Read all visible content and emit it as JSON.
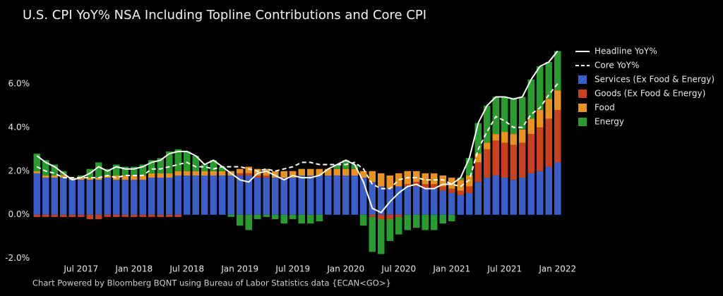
{
  "chart_data": {
    "type": "bar",
    "stacked": true,
    "title": "U.S. CPI YoY% NSA Including Topline Contributions and Core CPI",
    "source": "Chart Powered by Bloomberg BQNT using Bureau of Labor Statistics data   {ECAN<GO>}",
    "categories": [
      null,
      null,
      null,
      null,
      null,
      "Jul 2017",
      null,
      null,
      null,
      null,
      null,
      "Jan 2018",
      null,
      null,
      null,
      null,
      null,
      "Jul 2018",
      null,
      null,
      null,
      null,
      null,
      "Jan 2019",
      null,
      null,
      null,
      null,
      null,
      "Jul 2019",
      null,
      null,
      null,
      null,
      null,
      "Jan 2020",
      null,
      null,
      null,
      null,
      null,
      "Jul 2020",
      null,
      null,
      null,
      null,
      null,
      "Jan 2021",
      null,
      null,
      null,
      null,
      null,
      "Jul 2021",
      null,
      null,
      null,
      null,
      null,
      "Jan 2022"
    ],
    "series": [
      {
        "name": "Services (Ex Food & Energy)",
        "color": "#3b5fc9",
        "values": [
          1.9,
          1.7,
          1.7,
          1.7,
          1.6,
          1.6,
          1.6,
          1.6,
          1.7,
          1.6,
          1.6,
          1.6,
          1.6,
          1.7,
          1.7,
          1.7,
          1.8,
          1.8,
          1.8,
          1.8,
          1.8,
          1.8,
          1.8,
          1.8,
          1.8,
          1.7,
          1.7,
          1.7,
          1.7,
          1.7,
          1.8,
          1.8,
          1.8,
          1.8,
          1.8,
          1.8,
          1.8,
          1.7,
          1.5,
          1.3,
          1.2,
          1.3,
          1.3,
          1.3,
          1.2,
          1.2,
          1.1,
          1.0,
          0.9,
          1.0,
          1.5,
          1.7,
          1.8,
          1.7,
          1.6,
          1.7,
          1.9,
          2.0,
          2.2,
          2.4
        ]
      },
      {
        "name": "Goods (Ex Food & Energy)",
        "color": "#c9411f",
        "values": [
          -0.1,
          -0.1,
          -0.1,
          -0.1,
          -0.1,
          -0.1,
          -0.2,
          -0.2,
          -0.1,
          -0.1,
          -0.1,
          -0.1,
          -0.1,
          -0.1,
          -0.1,
          -0.1,
          -0.1,
          0.0,
          0.0,
          0.0,
          0.0,
          0.0,
          0.0,
          0.1,
          0.1,
          0.1,
          0.1,
          0.0,
          0.0,
          0.0,
          0.0,
          0.0,
          0.0,
          0.0,
          0.0,
          0.0,
          0.0,
          0.0,
          -0.1,
          -0.2,
          -0.2,
          -0.1,
          0.1,
          0.2,
          0.2,
          0.2,
          0.2,
          0.2,
          0.2,
          0.3,
          0.9,
          1.3,
          1.6,
          1.6,
          1.6,
          1.6,
          1.8,
          2.0,
          2.2,
          2.4
        ]
      },
      {
        "name": "Food",
        "color": "#e8921f",
        "values": [
          0.1,
          0.1,
          0.1,
          0.1,
          0.1,
          0.1,
          0.1,
          0.1,
          0.1,
          0.2,
          0.2,
          0.2,
          0.2,
          0.2,
          0.2,
          0.2,
          0.2,
          0.2,
          0.2,
          0.2,
          0.2,
          0.2,
          0.2,
          0.2,
          0.3,
          0.3,
          0.3,
          0.3,
          0.3,
          0.3,
          0.3,
          0.3,
          0.3,
          0.3,
          0.3,
          0.3,
          0.3,
          0.3,
          0.5,
          0.6,
          0.6,
          0.6,
          0.6,
          0.5,
          0.5,
          0.5,
          0.5,
          0.5,
          0.5,
          0.5,
          0.4,
          0.3,
          0.3,
          0.5,
          0.5,
          0.6,
          0.7,
          0.8,
          0.9,
          0.9
        ]
      },
      {
        "name": "Energy",
        "color": "#2a9b2e",
        "values": [
          0.8,
          0.7,
          0.5,
          0.2,
          0.0,
          0.1,
          0.4,
          0.7,
          0.3,
          0.5,
          0.4,
          0.4,
          0.5,
          0.6,
          0.7,
          1.0,
          1.0,
          0.9,
          0.7,
          0.3,
          0.5,
          0.2,
          -0.1,
          -0.5,
          -0.7,
          -0.2,
          -0.1,
          -0.2,
          -0.4,
          -0.2,
          -0.4,
          -0.4,
          -0.3,
          0.0,
          0.2,
          0.4,
          0.2,
          -0.5,
          -1.6,
          -1.6,
          -1.0,
          -0.8,
          -0.7,
          -0.6,
          -0.7,
          -0.7,
          -0.4,
          -0.3,
          0.1,
          0.8,
          1.4,
          1.7,
          1.7,
          1.6,
          1.6,
          1.5,
          1.8,
          2.0,
          1.7,
          1.8
        ]
      }
    ],
    "lines": [
      {
        "name": "Headline YoY%",
        "color": "#ffffff",
        "style": "solid",
        "values": [
          2.7,
          2.4,
          2.2,
          1.9,
          1.6,
          1.7,
          1.9,
          2.2,
          2.0,
          2.2,
          2.1,
          2.1,
          2.2,
          2.4,
          2.5,
          2.8,
          2.9,
          2.9,
          2.7,
          2.3,
          2.5,
          2.2,
          1.9,
          1.6,
          1.5,
          1.9,
          2.0,
          1.8,
          1.6,
          1.8,
          1.7,
          1.7,
          1.8,
          2.1,
          2.3,
          2.5,
          2.3,
          1.5,
          0.3,
          0.1,
          0.6,
          1.0,
          1.3,
          1.4,
          1.2,
          1.2,
          1.4,
          1.4,
          1.7,
          2.6,
          4.2,
          5.0,
          5.4,
          5.4,
          5.3,
          5.4,
          6.2,
          6.8,
          7.0,
          7.5
        ]
      },
      {
        "name": "Core YoY%",
        "color": "#ffffff",
        "style": "dashed",
        "values": [
          2.2,
          2.0,
          1.9,
          1.7,
          1.7,
          1.7,
          1.7,
          1.7,
          1.8,
          1.7,
          1.8,
          1.8,
          1.8,
          2.1,
          2.1,
          2.2,
          2.3,
          2.4,
          2.2,
          2.2,
          2.1,
          2.2,
          2.2,
          2.2,
          2.1,
          2.0,
          2.1,
          2.0,
          2.1,
          2.2,
          2.4,
          2.4,
          2.3,
          2.3,
          2.3,
          2.3,
          2.4,
          2.1,
          1.4,
          1.2,
          1.2,
          1.6,
          1.7,
          1.7,
          1.6,
          1.6,
          1.6,
          1.4,
          1.3,
          1.6,
          3.0,
          3.8,
          4.5,
          4.3,
          4.0,
          4.0,
          4.6,
          4.9,
          5.5,
          6.0
        ]
      }
    ],
    "ylim": [
      -2.3,
      7.9
    ],
    "yticks": [
      {
        "value": -2,
        "label": "-2.0%"
      },
      {
        "value": 0,
        "label": "0.0%"
      },
      {
        "value": 2,
        "label": "2.0%"
      },
      {
        "value": 4,
        "label": "4.0%"
      },
      {
        "value": 6,
        "label": "6.0%"
      }
    ],
    "grid": false,
    "legend": "right"
  }
}
